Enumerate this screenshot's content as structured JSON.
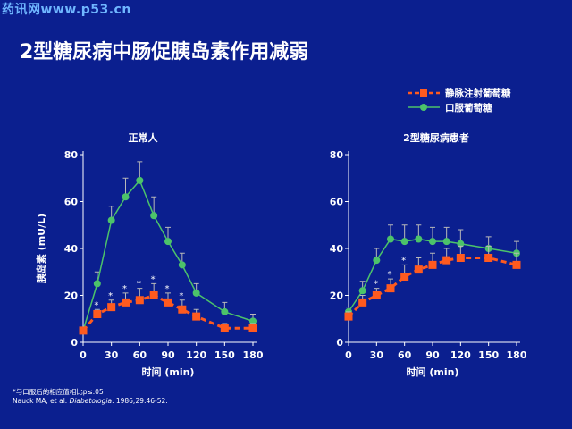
{
  "watermark": "药讯网www.p53.cn",
  "title": "2型糖尿病中肠促胰岛素作用减弱",
  "footnote": {
    "line1": "*与口服后的相应值相比p≤.05",
    "line2_prefix": "Nauck MA, et al. ",
    "line2_journal": "Diabetologia",
    "line2_suffix": ". 1986;29:46-52."
  },
  "colors": {
    "background": "#0b1f8f",
    "iv": "#ff5a1f",
    "oral": "#4cc36a",
    "error_bar": "#b9b9b9",
    "axis": "#ffffff"
  },
  "chart_data": [
    {
      "type": "line",
      "title": "正常人",
      "xlabel": "时间 (min)",
      "ylabel": "胰岛素 (mU/L)",
      "x_ticks": [
        0,
        30,
        60,
        90,
        120,
        150,
        180
      ],
      "y_ticks": [
        0,
        20,
        40,
        60,
        80
      ],
      "xlim": [
        0,
        180
      ],
      "ylim": [
        0,
        80
      ],
      "legend": "top-right",
      "series": [
        {
          "name": "口服葡萄糖",
          "style": "solid-circle",
          "x": [
            0,
            15,
            30,
            45,
            60,
            75,
            90,
            105,
            120,
            150,
            180
          ],
          "y": [
            5,
            25,
            52,
            62,
            69,
            54,
            43,
            33,
            21,
            13,
            9
          ],
          "err": [
            1,
            5,
            6,
            8,
            8,
            8,
            6,
            5,
            4,
            4,
            3
          ]
        },
        {
          "name": "静脉注射葡萄糖",
          "style": "dashed-square",
          "x": [
            0,
            15,
            30,
            45,
            60,
            75,
            90,
            105,
            120,
            150,
            180
          ],
          "y": [
            5,
            12,
            15,
            17,
            18,
            20,
            17,
            14,
            11,
            6,
            6
          ],
          "err": [
            1,
            2,
            3,
            4,
            5,
            5,
            4,
            4,
            3,
            2,
            2
          ],
          "significance_x": [
            15,
            30,
            45,
            60,
            75,
            90,
            105
          ]
        }
      ]
    },
    {
      "type": "line",
      "title": "2型糖尿病患者",
      "xlabel": "时间 (min)",
      "ylabel": "",
      "x_ticks": [
        0,
        30,
        60,
        90,
        120,
        150,
        180
      ],
      "y_ticks": [
        0,
        20,
        40,
        60,
        80
      ],
      "xlim": [
        0,
        180
      ],
      "ylim": [
        0,
        80
      ],
      "series": [
        {
          "name": "口服葡萄糖",
          "style": "solid-circle",
          "x": [
            0,
            15,
            30,
            45,
            60,
            75,
            90,
            105,
            120,
            150,
            180
          ],
          "y": [
            13,
            22,
            35,
            44,
            43,
            44,
            43,
            43,
            42,
            40,
            38
          ],
          "err": [
            2,
            4,
            5,
            6,
            7,
            6,
            6,
            6,
            6,
            5,
            5
          ]
        },
        {
          "name": "静脉注射葡萄糖",
          "style": "dashed-square",
          "x": [
            0,
            15,
            30,
            45,
            60,
            75,
            90,
            105,
            120,
            150,
            180
          ],
          "y": [
            11,
            17,
            20,
            23,
            28,
            31,
            33,
            35,
            36,
            36,
            33
          ],
          "err": [
            2,
            3,
            3,
            4,
            5,
            5,
            5,
            5,
            5,
            5,
            5
          ],
          "significance_x": [
            30,
            45,
            60
          ]
        }
      ]
    }
  ]
}
